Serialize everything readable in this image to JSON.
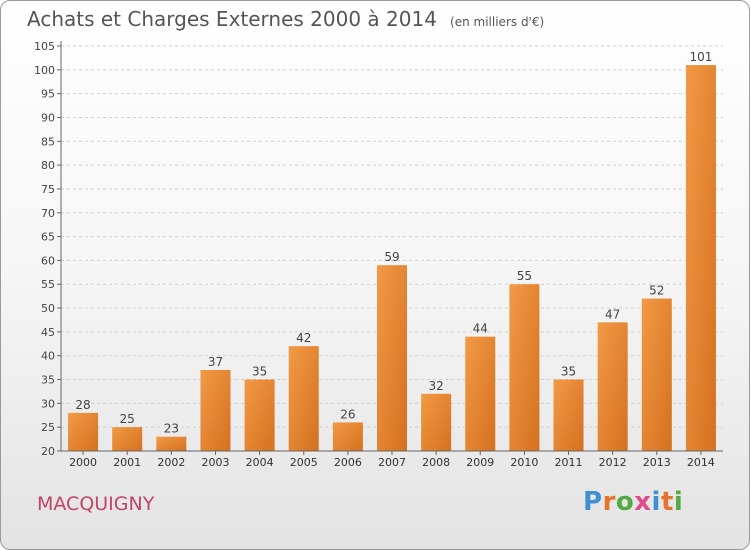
{
  "chart_data": {
    "type": "bar",
    "title": "Achats et Charges Externes 2000 à 2014",
    "subtitle": "(en milliers d'€)",
    "xlabel": "",
    "ylabel": "",
    "categories": [
      "2000",
      "2001",
      "2002",
      "2003",
      "2004",
      "2005",
      "2006",
      "2007",
      "2008",
      "2009",
      "2010",
      "2011",
      "2012",
      "2013",
      "2014"
    ],
    "values": [
      28,
      25,
      23,
      37,
      35,
      42,
      26,
      59,
      32,
      44,
      55,
      35,
      47,
      52,
      101
    ],
    "ylim": [
      20,
      105
    ],
    "yticks": [
      20,
      25,
      30,
      35,
      40,
      45,
      50,
      55,
      60,
      65,
      70,
      75,
      80,
      85,
      90,
      95,
      100,
      105
    ],
    "grid": "horizontal-dashed",
    "bar_color": "#f29a45",
    "bar_color_dark": "#d5701f"
  },
  "footer": {
    "city": "MACQUIGNY",
    "logo_text": "Proxiti",
    "logo_colors": [
      "#3f8fd2",
      "#e8732c",
      "#55a944",
      "#e24a8b",
      "#3f8fd2",
      "#e8732c",
      "#55a944"
    ]
  }
}
